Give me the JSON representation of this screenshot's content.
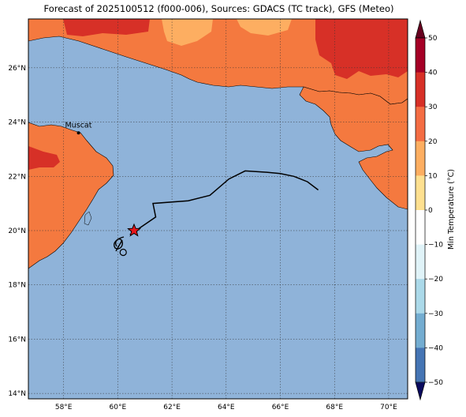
{
  "title": "Forecast of 2025100512 (f000-006), Sources: GDACS (TC track), GFS (Meteo)",
  "map": {
    "lon_range": [
      56.7,
      70.7
    ],
    "lat_range": [
      13.8,
      27.8
    ],
    "x_ticks": [
      "58°E",
      "60°E",
      "62°E",
      "64°E",
      "66°E",
      "68°E",
      "70°E"
    ],
    "x_tick_values": [
      58,
      60,
      62,
      64,
      66,
      68,
      70
    ],
    "y_ticks": [
      "14°N",
      "16°N",
      "18°N",
      "20°N",
      "22°N",
      "24°N",
      "26°N"
    ],
    "y_tick_values": [
      14,
      16,
      18,
      20,
      22,
      24,
      26
    ],
    "city": {
      "name": "Muscat",
      "lon": 58.55,
      "lat": 23.6
    },
    "storm_center": {
      "lon": 60.6,
      "lat": 20.0
    },
    "track": [
      [
        60.45,
        19.85
      ],
      [
        61.4,
        20.5
      ],
      [
        61.3,
        21.0
      ],
      [
        62.6,
        21.1
      ],
      [
        63.4,
        21.3
      ],
      [
        64.1,
        21.9
      ],
      [
        64.7,
        22.2
      ],
      [
        65.5,
        22.15
      ],
      [
        66.0,
        22.1
      ],
      [
        66.5,
        22.0
      ],
      [
        67.0,
        21.8
      ],
      [
        67.4,
        21.5
      ]
    ],
    "track_marker": {
      "lon": 60.2,
      "lat": 19.2
    },
    "colors": {
      "ocean": "#8fb3d9",
      "land_warm": "#f4793f",
      "land_hot": "#d73027",
      "land_mild": "#fdae61",
      "track": "#000000",
      "star": "#e8161b"
    }
  },
  "colorbar": {
    "label": "Min Temperature (°C)",
    "ticks": [
      "50",
      "40",
      "30",
      "20",
      "10",
      "0",
      "−10",
      "−20",
      "−30",
      "−40",
      "−50"
    ],
    "colors": [
      "#a50026",
      "#d73027",
      "#f46d43",
      "#fdae61",
      "#fee090",
      "#ffffff",
      "#e0f3f8",
      "#abd9e9",
      "#74add1",
      "#4575b4",
      "#313695"
    ]
  }
}
